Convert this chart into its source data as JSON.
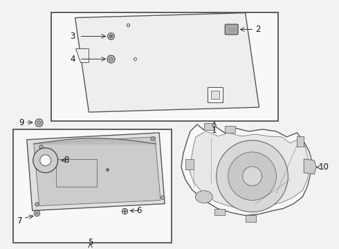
{
  "bg_color": "#f2f2f2",
  "box_fill": "#f8f8f8",
  "line_color": "#333333",
  "text_color": "#111111",
  "gray_fill": "#e0e0e0",
  "dark_gray": "#aaaaaa",
  "mid_gray": "#cccccc",
  "light_gray": "#eeeeee"
}
